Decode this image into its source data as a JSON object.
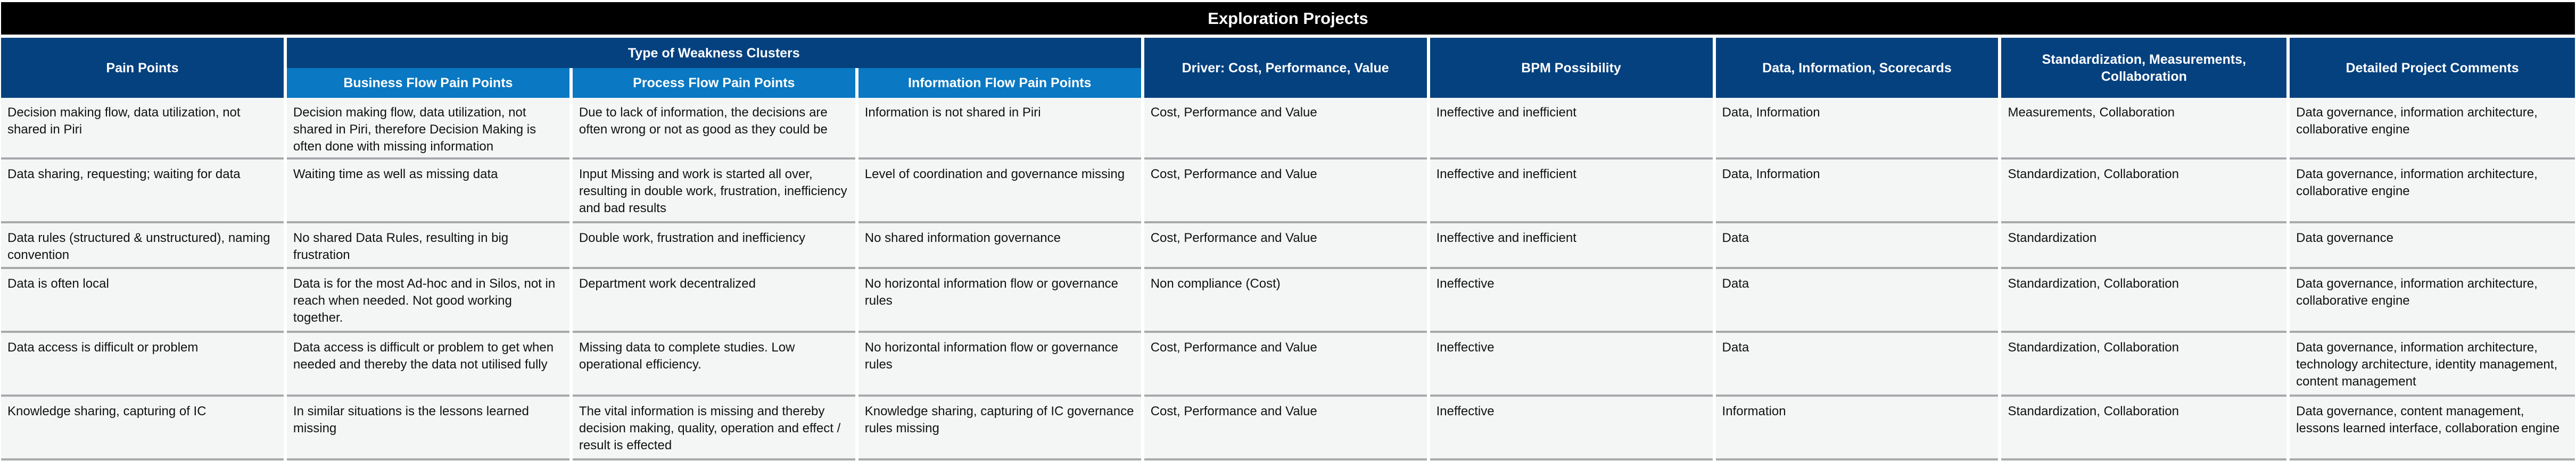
{
  "title": "Exploration Projects",
  "headers": {
    "pain_points": "Pain Points",
    "type_group": "Type of Weakness Clusters",
    "business_flow": "Business Flow Pain Points",
    "process_flow": "Process Flow Pain Points",
    "information_flow": "Information Flow Pain Points",
    "driver": "Driver: Cost, Performance, Value",
    "bpm": "BPM Possibility",
    "data_info": "Data, Information, Scorecards",
    "standardization": "Standardization, Measurements, Collaboration",
    "comments": "Detailed Project Comments"
  },
  "colors": {
    "title_bg": "#000000",
    "header_dark": "#05417f",
    "header_light": "#0a78c2",
    "cell_bg": "#f4f5f5",
    "row_border": "#a7a9ab"
  },
  "rows": [
    {
      "pain_point": "Decision making flow, data utilization, not shared in Piri",
      "business_flow": "Decision making flow, data utilization, not shared in Piri, therefore Decision Making is often done with missing information",
      "process_flow": "Due to lack of information, the decisions are often wrong or not as good as they could be",
      "information_flow": "Information is not shared in Piri",
      "driver": "Cost, Performance and Value",
      "bpm": "Ineffective and inefficient",
      "data_info": "Data, Information",
      "standardization": "Measurements, Collaboration",
      "comments": "Data governance, information architecture, collaborative engine"
    },
    {
      "pain_point": "Data sharing, requesting; waiting for data",
      "business_flow": "Waiting time as well as missing data",
      "process_flow": "Input Missing and work is started all over, resulting in double work, frustration, inefficiency and bad results",
      "information_flow": "Level of coordination and governance missing",
      "driver": "Cost, Performance and Value",
      "bpm": "Ineffective and inefficient",
      "data_info": "Data, Information",
      "standardization": "Standardization, Collaboration",
      "comments": "Data governance, information architecture, collaborative engine"
    },
    {
      "pain_point": "Data rules (structured & unstructured), naming convention",
      "business_flow": "No shared Data Rules, resulting in big frustration",
      "process_flow": "Double work, frustration and inefficiency",
      "information_flow": "No shared information governance",
      "driver": "Cost, Performance and Value",
      "bpm": "Ineffective and inefficient",
      "data_info": "Data",
      "standardization": "Standardization",
      "comments": "Data governance"
    },
    {
      "pain_point": "Data is often local",
      "business_flow": "Data is for the most Ad-hoc and in Silos, not in reach when needed. Not good working together.",
      "process_flow": "Department work decentralized",
      "information_flow": "No horizontal information flow or governance rules",
      "driver": "Non compliance (Cost)",
      "bpm": "Ineffective",
      "data_info": "Data",
      "standardization": "Standardization, Collaboration",
      "comments": "Data governance, information architecture, collaborative engine"
    },
    {
      "pain_point": "Data access is difficult or problem",
      "business_flow": "Data access is difficult or problem to get when needed and thereby the data not utilised fully",
      "process_flow": "Missing data to complete studies. Low operational efficiency.",
      "information_flow": "No horizontal information flow or governance rules",
      "driver": "Cost, Performance and Value",
      "bpm": "Ineffective",
      "data_info": "Data",
      "standardization": "Standardization, Collaboration",
      "comments": "Data governance, information architecture, technology architecture, identity management, content management"
    },
    {
      "pain_point": "Knowledge sharing, capturing of IC",
      "business_flow": "In similar situations is the lessons learned missing",
      "process_flow": "The vital information is missing and thereby decision making, quality, operation and effect / result is effected",
      "information_flow": "Knowledge sharing, capturing of IC governance rules missing",
      "driver": "Cost, Performance and Value",
      "bpm": "Ineffective",
      "data_info": "Information",
      "standardization": "Standardization, Collaboration",
      "comments": "Data governance, content management, lessons learned interface, collaboration engine"
    }
  ]
}
